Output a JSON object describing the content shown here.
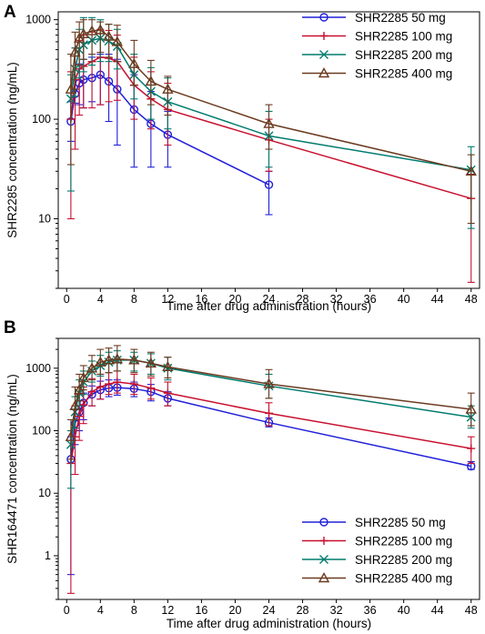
{
  "chart_data": [
    {
      "panel": "A",
      "type": "line",
      "xlabel": "Time after drug administration (hours)",
      "ylabel": "SHR2285 concentration (ng/mL)",
      "yscale": "log",
      "xlim": [
        -1,
        49
      ],
      "ylim": [
        2,
        1200
      ],
      "xticks": [
        0,
        4,
        8,
        12,
        16,
        20,
        24,
        28,
        32,
        36,
        40,
        44,
        48
      ],
      "yticks": [
        10,
        100,
        1000
      ],
      "yticklabels": [
        "10",
        "100",
        "1000"
      ],
      "legend_position": "top-right",
      "series": [
        {
          "name": "SHR2285 50 mg",
          "color": "#2020d8",
          "marker": "circle",
          "x": [
            0.5,
            1,
            1.5,
            2,
            3,
            4,
            5,
            6,
            8,
            10,
            12,
            24
          ],
          "y": [
            95,
            180,
            230,
            250,
            260,
            280,
            240,
            200,
            125,
            90,
            70,
            22
          ],
          "err_low": [
            60,
            145,
            140,
            130,
            150,
            140,
            95,
            55,
            33,
            33,
            33,
            11
          ],
          "err_high": [
            150,
            250,
            360,
            400,
            420,
            450,
            450,
            400,
            280,
            190,
            120,
            30
          ]
        },
        {
          "name": "SHR2285 100 mg",
          "color": "#c8102e",
          "marker": "plus",
          "x": [
            0.5,
            1,
            1.5,
            2,
            3,
            4,
            5,
            6,
            8,
            10,
            12,
            24,
            48
          ],
          "y": [
            100,
            250,
            320,
            340,
            380,
            420,
            410,
            380,
            220,
            160,
            125,
            62,
            16
          ],
          "err_low": [
            10,
            50,
            110,
            130,
            130,
            140,
            150,
            155,
            100,
            80,
            55,
            30,
            2.3
          ],
          "err_high": [
            300,
            520,
            620,
            700,
            750,
            800,
            780,
            700,
            420,
            300,
            230,
            100,
            28
          ]
        },
        {
          "name": "SHR2285 200 mg",
          "color": "#007b6e",
          "marker": "x",
          "x": [
            0.5,
            1,
            1.5,
            2,
            3,
            4,
            5,
            6,
            8,
            10,
            12,
            24,
            48
          ],
          "y": [
            160,
            320,
            500,
            560,
            620,
            650,
            610,
            540,
            280,
            190,
            150,
            68,
            31
          ],
          "err_low": [
            19,
            170,
            260,
            300,
            350,
            380,
            380,
            320,
            160,
            100,
            80,
            33,
            8
          ],
          "err_high": [
            280,
            520,
            800,
            1050,
            1050,
            1000,
            900,
            800,
            450,
            330,
            260,
            120,
            53
          ]
        },
        {
          "name": "SHR2285 400 mg",
          "color": "#6b3a1f",
          "marker": "triangle",
          "x": [
            0.5,
            1,
            1.5,
            2,
            3,
            4,
            5,
            6,
            8,
            10,
            12,
            24,
            48
          ],
          "y": [
            200,
            470,
            650,
            720,
            770,
            790,
            680,
            600,
            360,
            240,
            200,
            90,
            30
          ],
          "err_low": [
            35,
            200,
            350,
            400,
            450,
            470,
            420,
            380,
            220,
            140,
            110,
            50,
            9
          ],
          "err_high": [
            450,
            750,
            950,
            1000,
            1000,
            950,
            900,
            880,
            620,
            390,
            270,
            140,
            44
          ]
        }
      ]
    },
    {
      "panel": "B",
      "type": "line",
      "xlabel": "Time after drug administration (hours)",
      "ylabel": "SHR164471 concentration (ng/mL)",
      "yscale": "log",
      "xlim": [
        -1,
        49
      ],
      "ylim": [
        0.2,
        3000
      ],
      "xticks": [
        0,
        4,
        8,
        12,
        16,
        20,
        24,
        28,
        32,
        36,
        40,
        44,
        48
      ],
      "yticks": [
        1,
        10,
        100,
        1000
      ],
      "yticklabels": [
        "1",
        "10",
        "100",
        "1000"
      ],
      "legend_position": "bottom-right",
      "series": [
        {
          "name": "SHR2285 50 mg",
          "color": "#2020d8",
          "marker": "circle",
          "x": [
            0.5,
            1,
            1.5,
            2,
            3,
            4,
            5,
            6,
            8,
            10,
            12,
            24,
            48
          ],
          "y": [
            35,
            130,
            200,
            280,
            380,
            450,
            480,
            490,
            470,
            420,
            330,
            135,
            27
          ],
          "err_low": [
            0.5,
            60,
            100,
            150,
            250,
            320,
            350,
            370,
            350,
            300,
            250,
            115,
            24
          ],
          "err_high": [
            80,
            220,
            300,
            400,
            520,
            620,
            650,
            650,
            600,
            550,
            420,
            160,
            32
          ]
        },
        {
          "name": "SHR2285 100 mg",
          "color": "#c8102e",
          "marker": "plus",
          "x": [
            0.5,
            1,
            1.5,
            2,
            3,
            4,
            5,
            6,
            8,
            10,
            12,
            24,
            48
          ],
          "y": [
            30,
            80,
            170,
            260,
            420,
            500,
            560,
            600,
            560,
            480,
            400,
            190,
            52
          ],
          "err_low": [
            0.25,
            20,
            70,
            130,
            250,
            320,
            380,
            400,
            380,
            320,
            250,
            120,
            30
          ],
          "err_high": [
            100,
            250,
            380,
            500,
            680,
            800,
            850,
            900,
            800,
            700,
            600,
            280,
            80
          ]
        },
        {
          "name": "SHR2285 200 mg",
          "color": "#007b6e",
          "marker": "x",
          "x": [
            0.5,
            1,
            1.5,
            2,
            3,
            4,
            5,
            6,
            8,
            10,
            12,
            24,
            48
          ],
          "y": [
            60,
            200,
            400,
            600,
            900,
            1100,
            1250,
            1350,
            1350,
            1200,
            1000,
            520,
            165
          ],
          "err_low": [
            12,
            110,
            250,
            380,
            600,
            750,
            850,
            900,
            900,
            800,
            650,
            330,
            110
          ],
          "err_high": [
            100,
            350,
            650,
            900,
            1300,
            1600,
            1800,
            1900,
            1800,
            1700,
            1500,
            800,
            250
          ]
        },
        {
          "name": "SHR2285 400 mg",
          "color": "#6b3a1f",
          "marker": "triangle",
          "x": [
            0.5,
            1,
            1.5,
            2,
            3,
            4,
            5,
            6,
            8,
            10,
            12,
            24,
            48
          ],
          "y": [
            80,
            250,
            450,
            700,
            1000,
            1250,
            1350,
            1400,
            1350,
            1200,
            1050,
            560,
            220
          ],
          "err_low": [
            35,
            150,
            300,
            450,
            650,
            800,
            850,
            900,
            850,
            750,
            700,
            330,
            120
          ],
          "err_high": [
            150,
            500,
            800,
            1100,
            1600,
            2000,
            2100,
            2300,
            2000,
            1800,
            1500,
            950,
            400
          ]
        }
      ]
    }
  ]
}
